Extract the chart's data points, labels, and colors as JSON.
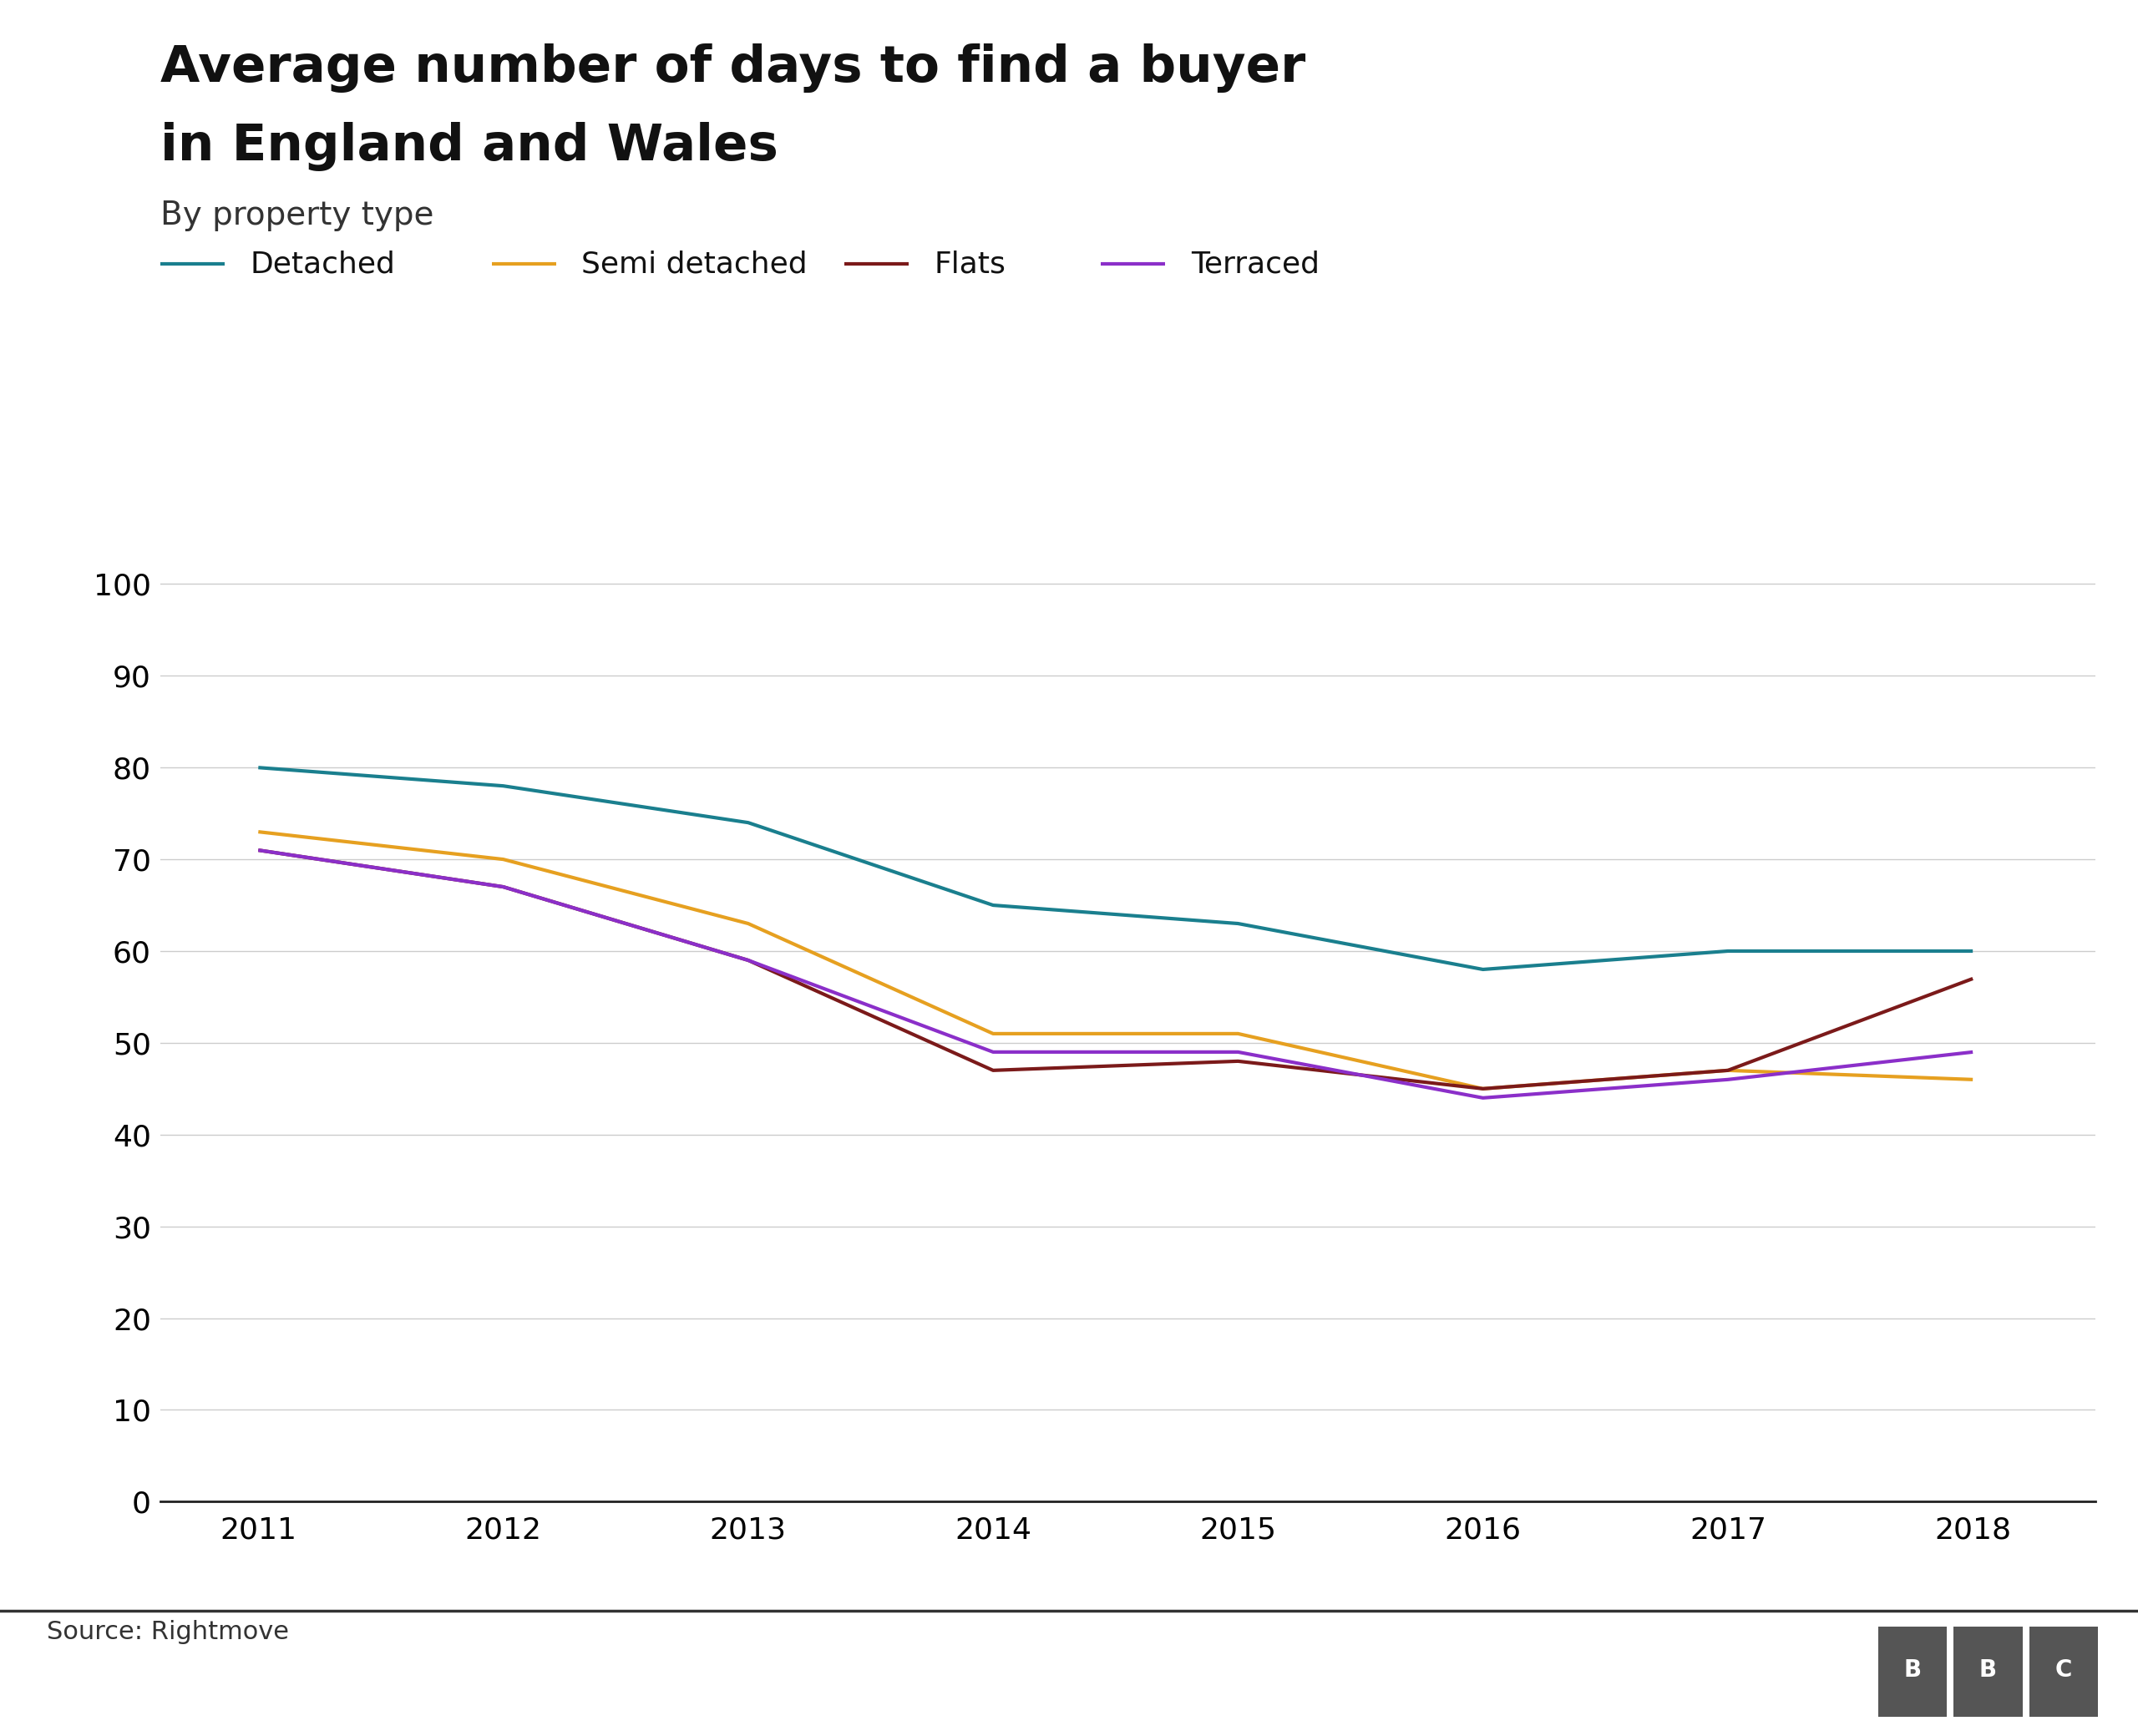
{
  "title_line1": "Average number of days to find a buyer",
  "title_line2": "in England and Wales",
  "subtitle": "By property type",
  "source": "Source: Rightmove",
  "years": [
    2011,
    2012,
    2013,
    2014,
    2015,
    2016,
    2017,
    2018
  ],
  "series": {
    "Detached": {
      "values": [
        80,
        78,
        74,
        65,
        63,
        58,
        60,
        60
      ],
      "color": "#1a7f8e"
    },
    "Semi detached": {
      "values": [
        73,
        70,
        63,
        51,
        51,
        45,
        47,
        46
      ],
      "color": "#e6a020"
    },
    "Flats": {
      "values": [
        71,
        67,
        59,
        47,
        48,
        45,
        47,
        57
      ],
      "color": "#7b1a1a"
    },
    "Terraced": {
      "values": [
        71,
        67,
        59,
        49,
        49,
        44,
        46,
        49
      ],
      "color": "#8b2fc9"
    }
  },
  "ylim": [
    0,
    105
  ],
  "yticks": [
    0,
    10,
    20,
    30,
    40,
    50,
    60,
    70,
    80,
    90,
    100
  ],
  "background_color": "#ffffff",
  "line_width": 3.0,
  "grid_color": "#cccccc",
  "title_fontsize": 44,
  "subtitle_fontsize": 28,
  "legend_fontsize": 26,
  "tick_fontsize": 26,
  "source_fontsize": 22
}
